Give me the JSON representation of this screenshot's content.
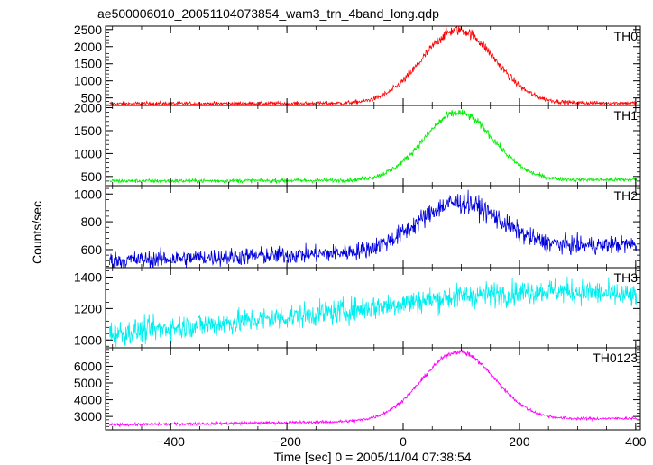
{
  "title": "ae500006010_20051104073854_wam3_trn_4band_long.qdp",
  "xlabel": "Time [sec] 0 = 2005/11/04 07:38:54",
  "ylabel": "Counts/sec",
  "chart_data": [
    {
      "type": "line",
      "name": "TH0",
      "color": "#ff0000",
      "xlim": [
        -512,
        408
      ],
      "ylim": [
        280,
        2600
      ],
      "yticks": [
        500,
        1000,
        1500,
        2000,
        2500
      ],
      "ytick_labels": [
        "500",
        "1000",
        "1500",
        "2000",
        "2500"
      ],
      "model": {
        "baseline": [
          330,
          350
        ],
        "peak_amp": 2150,
        "peak_x": 95,
        "sigma": 62,
        "noise": 30
      },
      "summary": {
        "baseline": 340,
        "peak": 2490,
        "peak_time": 95
      }
    },
    {
      "type": "line",
      "name": "TH1",
      "color": "#00ee00",
      "xlim": [
        -512,
        408
      ],
      "ylim": [
        300,
        2050
      ],
      "yticks": [
        500,
        1000,
        1500,
        2000
      ],
      "ytick_labels": [
        "500",
        "1000",
        "1500",
        "2000"
      ],
      "model": {
        "baseline": [
          400,
          430
        ],
        "peak_amp": 1470,
        "peak_x": 95,
        "sigma": 60,
        "noise": 22
      },
      "summary": {
        "baseline": 415,
        "peak": 1890,
        "peak_time": 95
      }
    },
    {
      "type": "line",
      "name": "TH2",
      "color": "#0000dd",
      "xlim": [
        -512,
        408
      ],
      "ylim": [
        470,
        1060
      ],
      "yticks": [
        600,
        800,
        1000
      ],
      "ytick_labels": [
        "600",
        "800",
        "1000"
      ],
      "model": {
        "baseline": [
          520,
          640
        ],
        "peak_amp": 340,
        "peak_x": 95,
        "sigma": 70,
        "noise": 32
      },
      "summary": {
        "baseline": 590,
        "peak": 980,
        "peak_time": 95
      }
    },
    {
      "type": "line",
      "name": "TH3",
      "color": "#00eeee",
      "xlim": [
        -512,
        408
      ],
      "ylim": [
        950,
        1460
      ],
      "yticks": [
        1000,
        1200,
        1400
      ],
      "ytick_labels": [
        "1000",
        "1200",
        "1400"
      ],
      "model": {
        "baseline": [
          1040,
          1350
        ],
        "peak_amp": 30,
        "peak_x": 100,
        "sigma": 120,
        "noise": 40,
        "drop_after": 250,
        "drop_to": 1270
      },
      "summary": {
        "start": 1060,
        "plateau": 1350,
        "end": 1260
      }
    },
    {
      "type": "line",
      "name": "TH0123",
      "color": "#ff00ff",
      "xlim": [
        -512,
        408
      ],
      "ylim": [
        2200,
        7100
      ],
      "yticks": [
        3000,
        4000,
        5000,
        6000
      ],
      "ytick_labels": [
        "3000",
        "4000",
        "5000",
        "6000"
      ],
      "model": {
        "baseline": [
          2500,
          2900
        ],
        "peak_amp": 4100,
        "peak_x": 95,
        "sigma": 62,
        "noise": 45
      },
      "summary": {
        "baseline": 2700,
        "peak": 6900,
        "peak_time": 95
      }
    }
  ],
  "xaxis": {
    "ticks": [
      -400,
      -200,
      0,
      200,
      400
    ],
    "tick_labels": [
      "−400",
      "−200",
      "0",
      "200",
      "400"
    ]
  }
}
